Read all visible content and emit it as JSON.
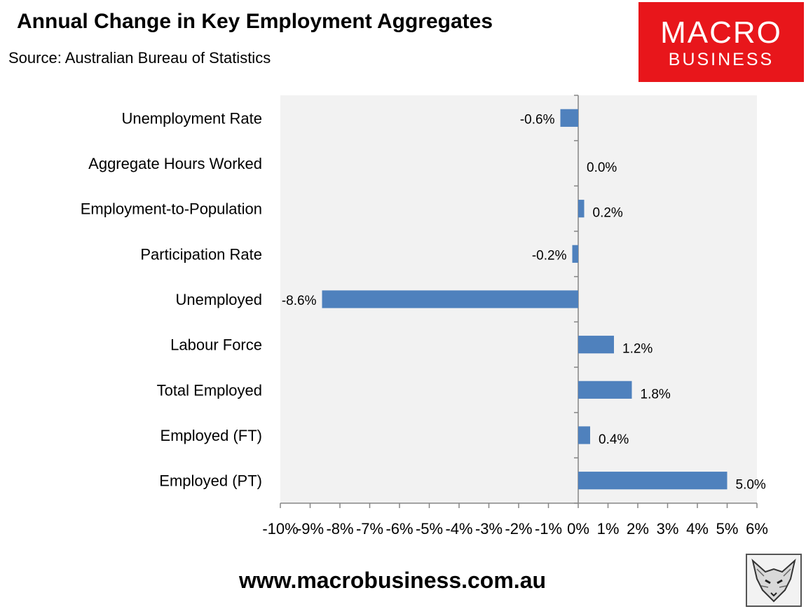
{
  "header": {
    "title": "Annual Change in Key Employment Aggregates",
    "subtitle": "Source: Australian Bureau of Statistics"
  },
  "logo": {
    "line1": "MACRO",
    "line2": "BUSINESS",
    "color": "#e8161b"
  },
  "footer": {
    "url": "www.macrobusiness.com.au"
  },
  "colors": {
    "bar": "#4f81bd",
    "plot_bg": "#f2f2f2"
  },
  "chart_data": {
    "type": "bar",
    "orientation": "horizontal",
    "title": "Annual Change in Key Employment Aggregates",
    "categories": [
      "Unemployment Rate",
      "Aggregate Hours Worked",
      "Employment-to-Population",
      "Participation Rate",
      "Unemployed",
      "Labour Force",
      "Total Employed",
      "Employed (FT)",
      "Employed (PT)"
    ],
    "values": [
      -0.6,
      0.0,
      0.2,
      -0.2,
      -8.6,
      1.2,
      1.8,
      0.4,
      5.0
    ],
    "data_labels": [
      "-0.6%",
      "0.0%",
      "0.2%",
      "-0.2%",
      "-8.6%",
      "1.2%",
      "1.8%",
      "0.4%",
      "5.0%"
    ],
    "xlim": [
      -10,
      6
    ],
    "xticks": [
      -10,
      -9,
      -8,
      -7,
      -6,
      -5,
      -4,
      -3,
      -2,
      -1,
      0,
      1,
      2,
      3,
      4,
      5,
      6
    ],
    "xtick_labels": [
      "-10%",
      "-9%",
      "-8%",
      "-7%",
      "-6%",
      "-5%",
      "-4%",
      "-3%",
      "-2%",
      "-1%",
      "0%",
      "1%",
      "2%",
      "3%",
      "4%",
      "5%",
      "6%"
    ],
    "grid": false,
    "legend": false
  }
}
